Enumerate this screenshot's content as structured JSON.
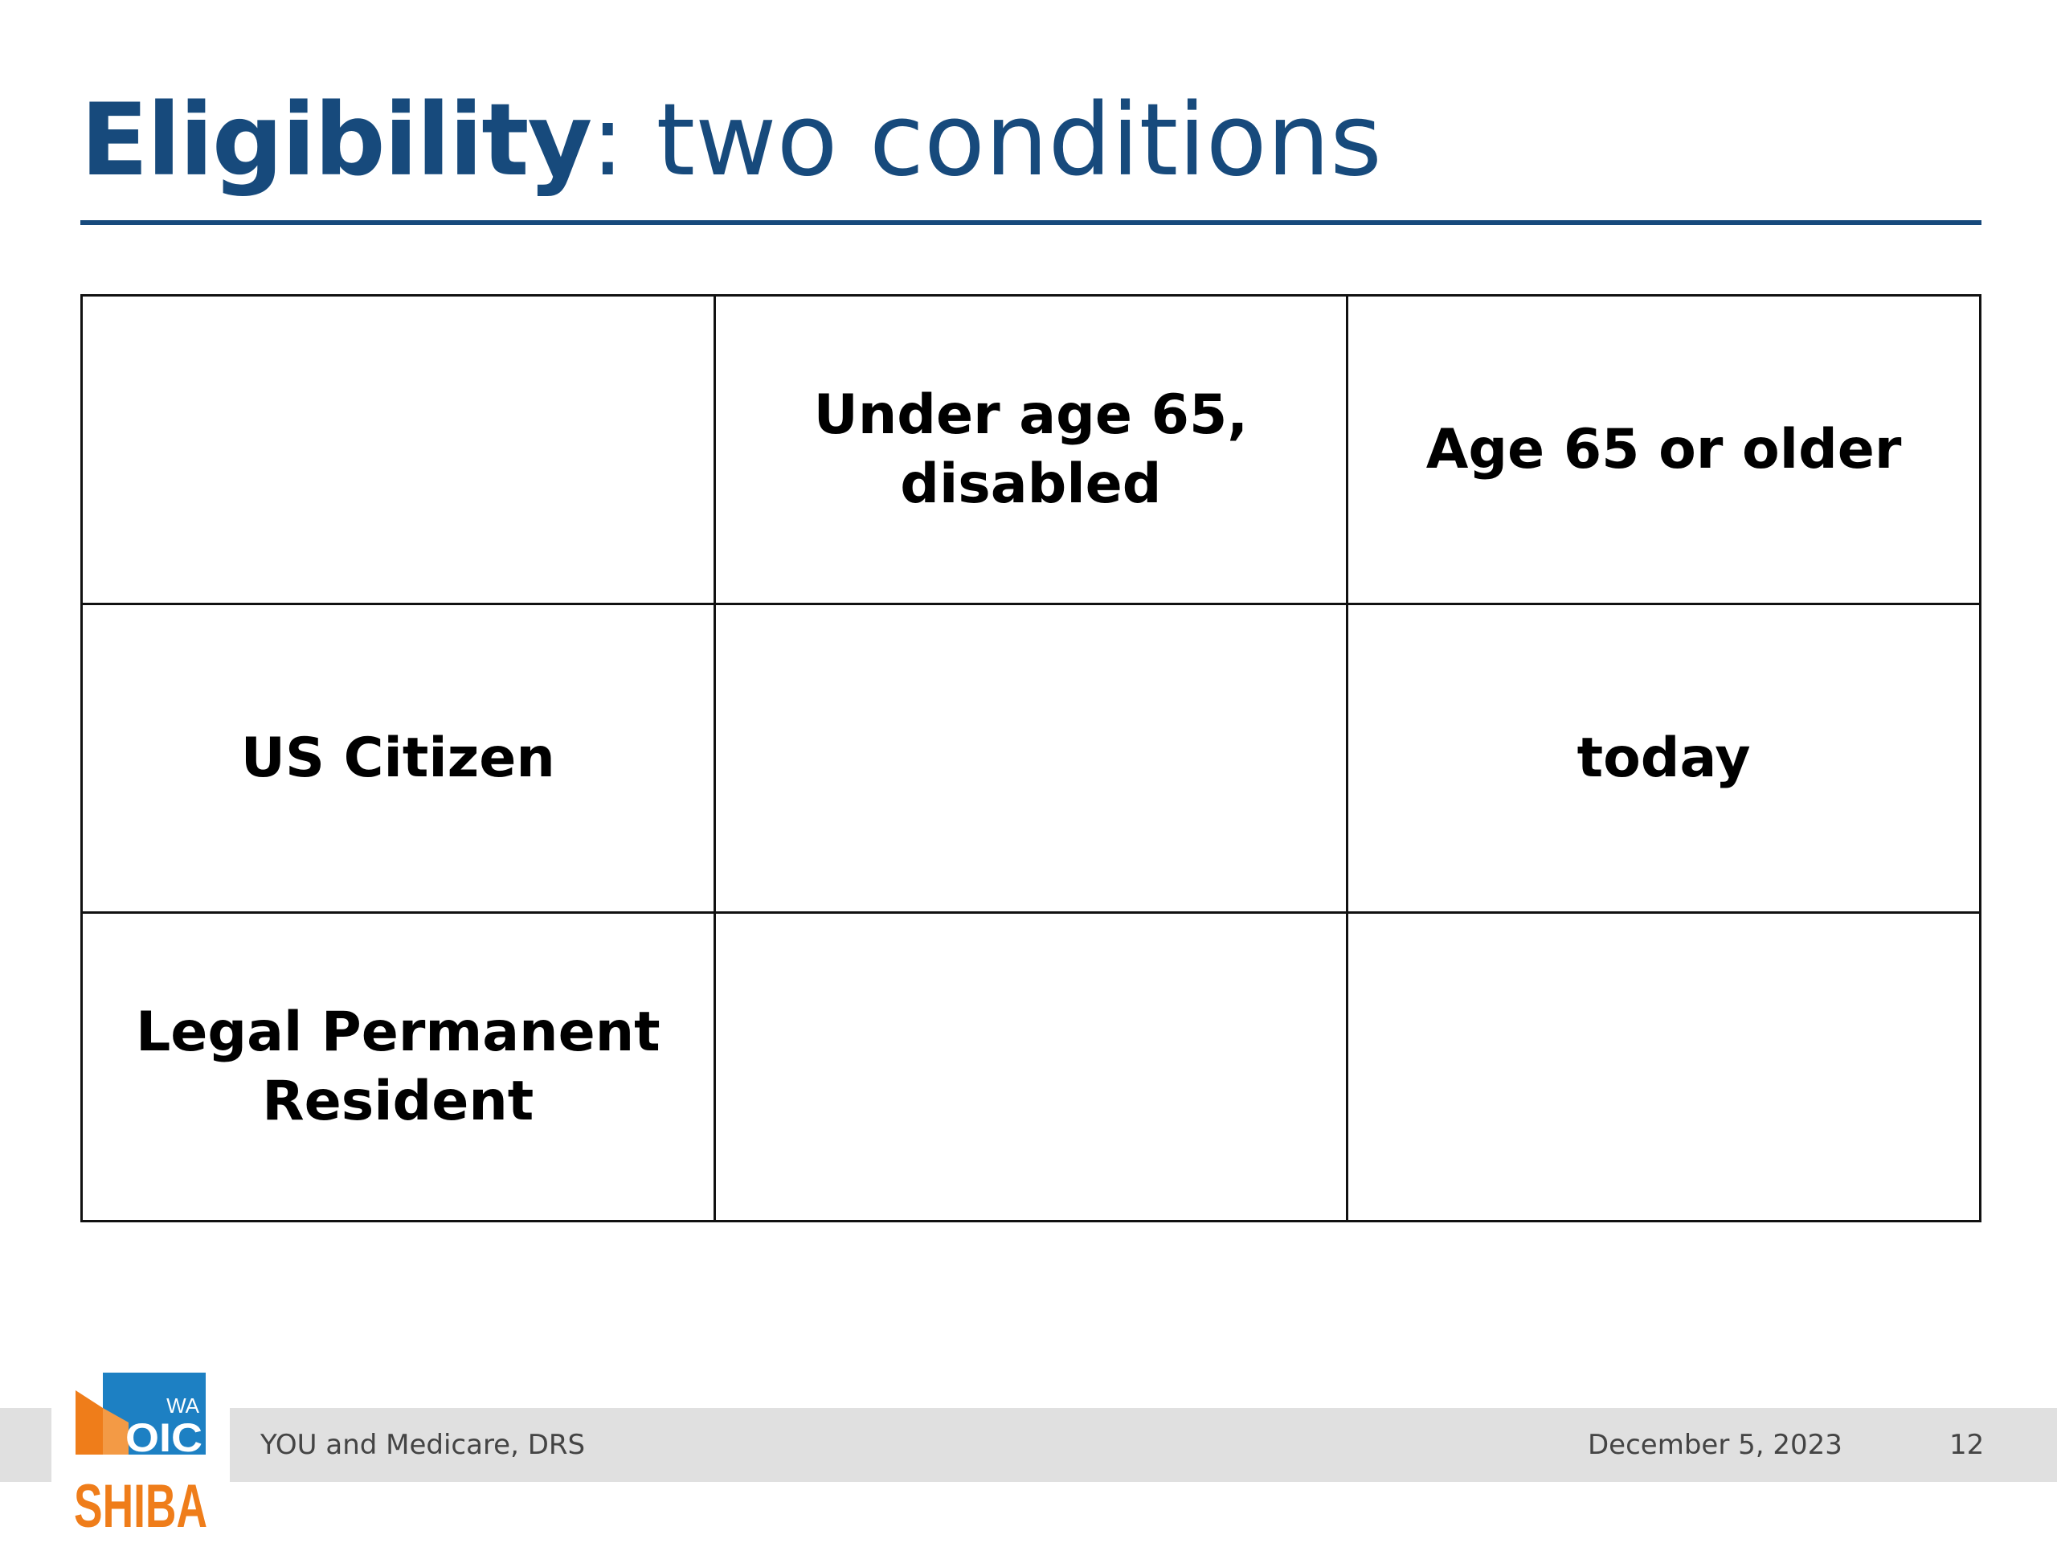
{
  "slide": {
    "title_strong": "Eligibility",
    "title_rest": ": two conditions"
  },
  "table": {
    "header": [
      "",
      "Under age 65, disabled",
      "Age 65 or older"
    ],
    "rows": [
      [
        "US Citizen",
        "",
        "today"
      ],
      [
        "Legal Permanent Resident",
        "",
        ""
      ]
    ]
  },
  "footer": {
    "presentation": "YOU and Medicare, DRS",
    "date": "December 5, 2023",
    "page_number": "12"
  },
  "logo": {
    "lettering": [
      "WA",
      "OIC",
      "SHIBA"
    ],
    "colors": {
      "blue": "#1d80c3",
      "orange": "#ef7d1a"
    }
  },
  "colors": {
    "title": "#174a7c",
    "accent": "#e8660f",
    "footer_bar": "#e0e0e0"
  }
}
